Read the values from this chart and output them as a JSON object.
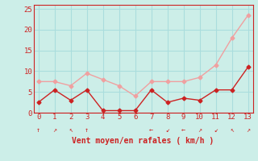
{
  "x": [
    0,
    1,
    2,
    3,
    4,
    5,
    6,
    7,
    8,
    9,
    10,
    11,
    12,
    13
  ],
  "y_mean": [
    2.5,
    5.5,
    3.0,
    5.5,
    0.5,
    0.5,
    0.5,
    5.5,
    2.5,
    3.5,
    3.0,
    5.5,
    5.5,
    11.0
  ],
  "y_gust": [
    7.5,
    7.5,
    6.5,
    9.5,
    8.0,
    6.5,
    4.0,
    7.5,
    7.5,
    7.5,
    8.5,
    11.5,
    18.0,
    23.5
  ],
  "xlabel": "Vent moyen/en rafales ( km/h )",
  "ylim": [
    0,
    26
  ],
  "xlim": [
    -0.3,
    13.3
  ],
  "yticks": [
    0,
    5,
    10,
    15,
    20,
    25
  ],
  "xticks": [
    0,
    1,
    2,
    3,
    4,
    5,
    6,
    7,
    8,
    9,
    10,
    11,
    12,
    13
  ],
  "bg_color": "#cceee8",
  "line_color_mean": "#cc2222",
  "line_color_gust": "#f0a0a0",
  "grid_color": "#aadddd",
  "marker_size": 2.5,
  "linewidth": 1.0,
  "xlabel_fontsize": 7,
  "tick_fontsize": 6.5,
  "arrow_symbols": [
    "↑",
    "↗",
    "↖",
    "↑",
    "",
    "",
    "",
    "←",
    "↙",
    "←",
    "↗",
    "↙",
    "↖",
    "↗"
  ]
}
